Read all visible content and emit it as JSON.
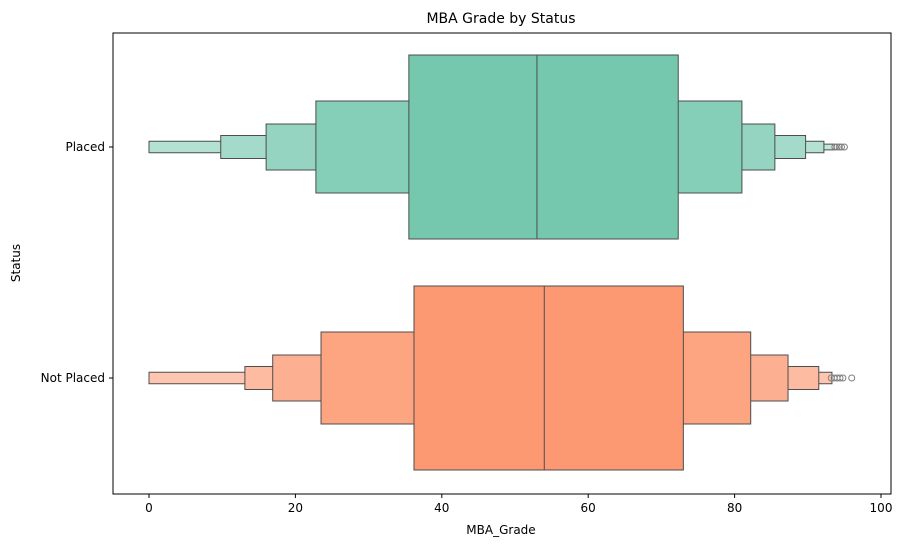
{
  "chart_data": {
    "type": "boxen",
    "title": "MBA Grade by Status",
    "xlabel": "MBA_Grade",
    "ylabel": "Status",
    "xlim": [
      -5,
      102
    ],
    "xticks": [
      0,
      20,
      40,
      60,
      80,
      100
    ],
    "xtick_labels": [
      "0",
      "20",
      "40",
      "60",
      "80",
      "100"
    ],
    "categories": [
      "Placed",
      "Not Placed"
    ],
    "series": [
      {
        "category": "Placed",
        "color": "#66c2a5",
        "median": 53,
        "levels": [
          {
            "low": 35.5,
            "high": 72.3
          },
          {
            "low": 22.8,
            "high": 81
          },
          {
            "low": 16,
            "high": 85.5
          },
          {
            "low": 9.8,
            "high": 89.7
          },
          {
            "low": 0,
            "high": 92.2
          },
          {
            "low": 0,
            "high": 93.6
          }
        ],
        "outliers": [
          93.7,
          94.0,
          94.3,
          94.6,
          95.0
        ]
      },
      {
        "category": "Not Placed",
        "color": "#fc8d62",
        "median": 54,
        "levels": [
          {
            "low": 36.2,
            "high": 73
          },
          {
            "low": 23.5,
            "high": 82.2
          },
          {
            "low": 16.9,
            "high": 87.3
          },
          {
            "low": 13.1,
            "high": 91.5
          },
          {
            "low": 0,
            "high": 93.3
          }
        ],
        "outliers": [
          93.2,
          93.6,
          94.0,
          94.4,
          94.8,
          96.0
        ]
      }
    ]
  }
}
